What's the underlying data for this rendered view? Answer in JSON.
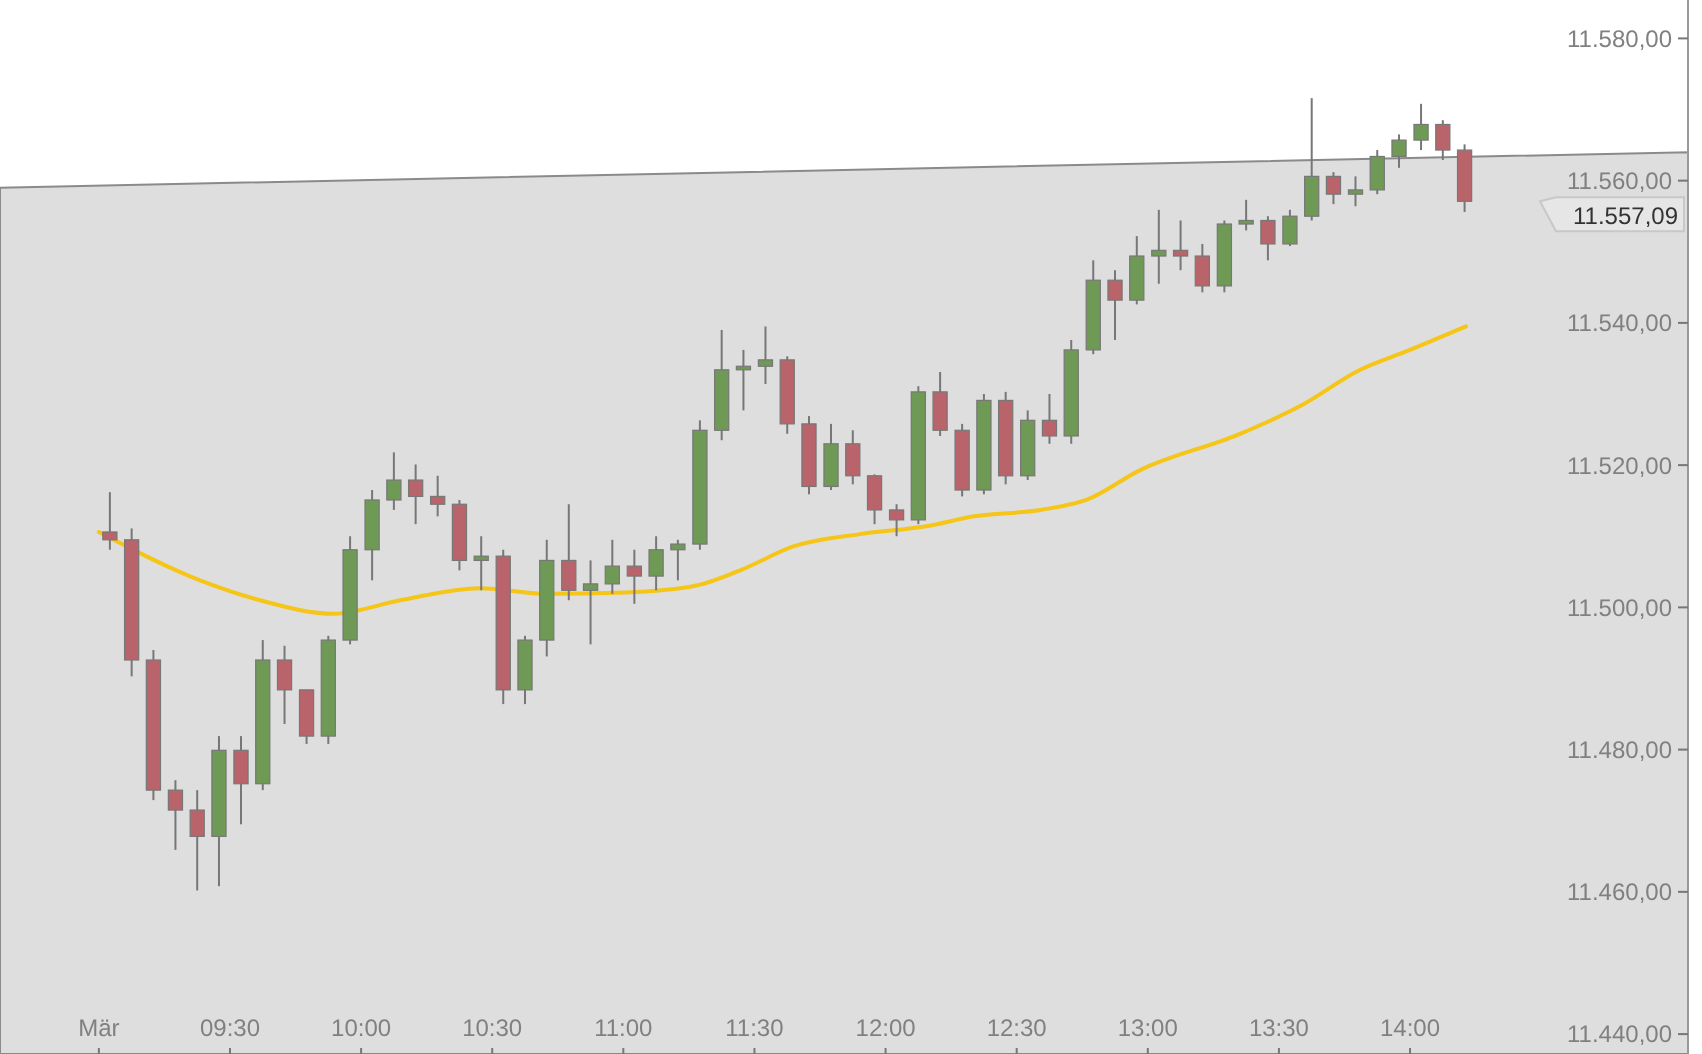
{
  "chart_data": {
    "type": "candlestick",
    "x": [
      9.042,
      9.125,
      9.208,
      9.292,
      9.375,
      9.458,
      9.542,
      9.625,
      9.708,
      9.792,
      9.875,
      9.958,
      10.042,
      10.125,
      10.208,
      10.292,
      10.375,
      10.458,
      10.542,
      10.625,
      10.708,
      10.792,
      10.875,
      10.958,
      11.042,
      11.125,
      11.208,
      11.292,
      11.375,
      11.458,
      11.542,
      11.625,
      11.708,
      11.792,
      11.875,
      11.958,
      12.042,
      12.125,
      12.208,
      12.292,
      12.375,
      12.458,
      12.542,
      12.625,
      12.708,
      12.792,
      12.875,
      12.958,
      13.042,
      13.125,
      13.208,
      13.292,
      13.375,
      13.458,
      13.542,
      13.625,
      13.708,
      13.792,
      13.875,
      13.958,
      14.042,
      14.125,
      14.208
    ],
    "ohlc": [
      [
        11510.6,
        11516.2,
        11508.1,
        11509.5
      ],
      [
        11509.5,
        11511.1,
        11490.3,
        11492.6
      ],
      [
        11492.6,
        11494.0,
        11472.9,
        11474.3
      ],
      [
        11474.3,
        11475.7,
        11465.9,
        11471.5
      ],
      [
        11471.5,
        11474.3,
        11460.2,
        11467.8
      ],
      [
        11467.8,
        11481.9,
        11460.8,
        11479.9
      ],
      [
        11479.9,
        11481.9,
        11469.5,
        11475.2
      ],
      [
        11475.2,
        11495.4,
        11474.3,
        11492.6
      ],
      [
        11492.6,
        11494.6,
        11483.6,
        11488.4
      ],
      [
        11488.4,
        11488.4,
        11480.8,
        11481.9
      ],
      [
        11481.9,
        11496.0,
        11480.8,
        11495.4
      ],
      [
        11495.4,
        11510.0,
        11494.8,
        11508.1
      ],
      [
        11508.1,
        11516.5,
        11503.8,
        11515.1
      ],
      [
        11515.1,
        11521.8,
        11513.7,
        11517.9
      ],
      [
        11517.9,
        11520.1,
        11511.7,
        11515.6
      ],
      [
        11515.6,
        11518.5,
        11512.8,
        11514.5
      ],
      [
        11514.5,
        11515.1,
        11505.2,
        11506.6
      ],
      [
        11506.6,
        11510.0,
        11502.4,
        11507.2
      ],
      [
        11507.2,
        11508.1,
        11486.4,
        11488.4
      ],
      [
        11488.4,
        11496.0,
        11486.4,
        11495.4
      ],
      [
        11495.4,
        11509.5,
        11493.1,
        11506.6
      ],
      [
        11506.6,
        11514.5,
        11501.0,
        11502.4
      ],
      [
        11502.4,
        11506.6,
        11494.8,
        11503.3
      ],
      [
        11503.3,
        11509.5,
        11501.9,
        11505.8
      ],
      [
        11505.8,
        11508.1,
        11500.5,
        11504.4
      ],
      [
        11504.4,
        11510.0,
        11502.4,
        11508.1
      ],
      [
        11508.1,
        11509.5,
        11503.8,
        11508.9
      ],
      [
        11508.9,
        11526.3,
        11508.1,
        11524.9
      ],
      [
        11524.9,
        11539.0,
        11523.5,
        11533.4
      ],
      [
        11533.4,
        11536.2,
        11527.7,
        11533.9
      ],
      [
        11533.9,
        11539.5,
        11531.4,
        11534.8
      ],
      [
        11534.8,
        11535.3,
        11524.4,
        11525.8
      ],
      [
        11525.8,
        11526.9,
        11515.9,
        11517.0
      ],
      [
        11517.0,
        11525.8,
        11516.5,
        11523.0
      ],
      [
        11523.0,
        11524.9,
        11517.3,
        11518.5
      ],
      [
        11518.5,
        11518.7,
        11511.7,
        11513.7
      ],
      [
        11513.7,
        11514.5,
        11510.0,
        11512.3
      ],
      [
        11512.3,
        11531.1,
        11511.7,
        11530.3
      ],
      [
        11530.3,
        11533.1,
        11524.1,
        11524.9
      ],
      [
        11524.9,
        11525.8,
        11515.6,
        11516.5
      ],
      [
        11516.5,
        11530.0,
        11515.9,
        11529.1
      ],
      [
        11529.1,
        11530.3,
        11517.3,
        11518.5
      ],
      [
        11518.5,
        11527.7,
        11517.9,
        11526.3
      ],
      [
        11526.3,
        11530.0,
        11523.0,
        11524.1
      ],
      [
        11524.1,
        11537.6,
        11523.0,
        11536.2
      ],
      [
        11536.2,
        11548.8,
        11535.6,
        11546.0
      ],
      [
        11546.0,
        11547.4,
        11537.6,
        11543.2
      ],
      [
        11543.2,
        11552.2,
        11542.6,
        11549.4
      ],
      [
        11549.4,
        11555.9,
        11545.5,
        11550.2
      ],
      [
        11550.2,
        11554.4,
        11547.4,
        11549.4
      ],
      [
        11549.4,
        11551.1,
        11544.3,
        11545.2
      ],
      [
        11545.2,
        11554.4,
        11544.3,
        11553.9
      ],
      [
        11553.9,
        11557.3,
        11553.0,
        11554.4
      ],
      [
        11554.4,
        11555.0,
        11548.8,
        11551.1
      ],
      [
        11551.1,
        11555.9,
        11550.8,
        11555.0
      ],
      [
        11555.0,
        11571.6,
        11554.4,
        11560.6
      ],
      [
        11560.6,
        11561.2,
        11556.7,
        11558.1
      ],
      [
        11558.1,
        11560.6,
        11556.4,
        11558.7
      ],
      [
        11558.7,
        11564.3,
        11558.1,
        11563.4
      ],
      [
        11563.4,
        11566.5,
        11561.8,
        11565.7
      ],
      [
        11565.7,
        11570.8,
        11564.3,
        11567.9
      ],
      [
        11567.9,
        11568.5,
        11562.9,
        11564.3
      ],
      [
        11564.3,
        11565.1,
        11555.6,
        11557.09
      ]
    ],
    "colors": [
      "#b9646a",
      "#b9646a",
      "#b9646a",
      "#b9646a",
      "#b9646a",
      "#6f9a55",
      "#b9646a",
      "#6f9a55",
      "#b9646a",
      "#b9646a",
      "#6f9a55",
      "#6f9a55",
      "#6f9a55",
      "#6f9a55",
      "#b9646a",
      "#b9646a",
      "#b9646a",
      "#6f9a55",
      "#b9646a",
      "#6f9a55",
      "#6f9a55",
      "#b9646a",
      "#6f9a55",
      "#6f9a55",
      "#b9646a",
      "#6f9a55",
      "#6f9a55",
      "#6f9a55",
      "#6f9a55",
      "#6f9a55",
      "#6f9a55",
      "#b9646a",
      "#b9646a",
      "#6f9a55",
      "#b9646a",
      "#b9646a",
      "#b9646a",
      "#6f9a55",
      "#b9646a",
      "#b9646a",
      "#6f9a55",
      "#b9646a",
      "#6f9a55",
      "#b9646a",
      "#6f9a55",
      "#6f9a55",
      "#b9646a",
      "#6f9a55",
      "#6f9a55",
      "#b9646a",
      "#b9646a",
      "#6f9a55",
      "#6f9a55",
      "#b9646a",
      "#6f9a55",
      "#6f9a55",
      "#b9646a",
      "#6f9a55",
      "#6f9a55",
      "#6f9a55",
      "#6f9a55",
      "#b9646a",
      "#b9646a"
    ],
    "series": [
      {
        "type": "area",
        "x": [
          8.623,
          15.06
        ],
        "values": [
          11559,
          11564
        ],
        "color": "#dedede"
      },
      {
        "type": "line",
        "x": [
          9.0,
          9.386,
          9.615,
          9.897,
          10.149,
          10.453,
          10.705,
          11.01,
          11.27,
          11.445,
          11.651,
          11.903,
          12.155,
          12.338,
          12.59,
          12.765,
          12.971,
          13.352,
          13.581,
          13.81,
          14.0,
          14.213
        ],
        "values": [
          11510.6,
          11503.8,
          11501.0,
          11499.1,
          11501.0,
          11502.7,
          11501.9,
          11502.1,
          11503.0,
          11505.2,
          11508.6,
          11510.3,
          11511.4,
          11512.8,
          11513.7,
          11515.1,
          11519.3,
          11524.4,
          11528.3,
          11533.4,
          11536.2,
          11539.5
        ],
        "color": "#f5c518"
      }
    ],
    "xlim": [
      8.623,
      15.06
    ],
    "ylim": [
      11437.2,
      11585.4
    ],
    "xticks": [
      {
        "value": 9,
        "label": "Mär"
      },
      {
        "value": 9.5,
        "label": "09:30"
      },
      {
        "value": 10,
        "label": "10:00"
      },
      {
        "value": 10.5,
        "label": "10:30"
      },
      {
        "value": 11,
        "label": "11:00"
      },
      {
        "value": 11.5,
        "label": "11:30"
      },
      {
        "value": 12,
        "label": "12:00"
      },
      {
        "value": 12.5,
        "label": "12:30"
      },
      {
        "value": 13,
        "label": "13:00"
      },
      {
        "value": 13.5,
        "label": "13:30"
      },
      {
        "value": 14,
        "label": "14:00"
      }
    ],
    "yticks": [
      {
        "value": 11440,
        "label": "11.440,00"
      },
      {
        "value": 11460,
        "label": "11.460,00"
      },
      {
        "value": 11480,
        "label": "11.480,00"
      },
      {
        "value": 11500,
        "label": "11.500,00"
      },
      {
        "value": 11520,
        "label": "11.520,00"
      },
      {
        "value": 11540,
        "label": "11.540,00"
      },
      {
        "value": 11560,
        "label": "11.560,00"
      },
      {
        "value": 11580,
        "label": "11.580,00"
      }
    ],
    "annotations": [
      "11.557,09"
    ]
  }
}
